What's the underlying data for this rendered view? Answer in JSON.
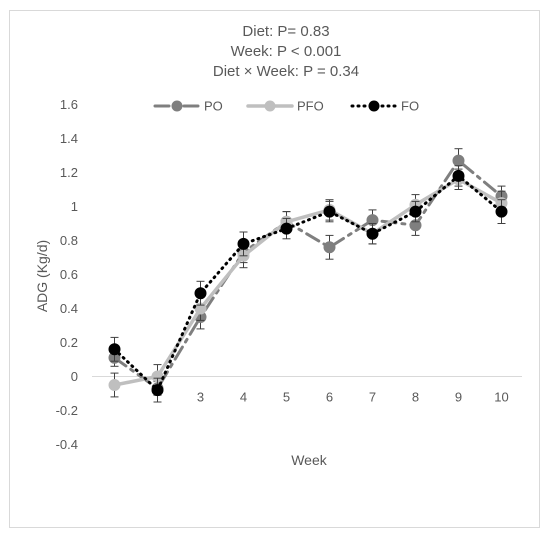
{
  "chart_data": {
    "type": "line",
    "subtitles": [
      "Diet: P= 0.83",
      "Week: P  < 0.001",
      "Diet × Week: P = 0.34"
    ],
    "xlabel": "Week",
    "ylabel": "ADG (Kg/d)",
    "x": [
      2,
      3,
      4,
      5,
      6,
      7,
      8,
      9,
      10
    ],
    "x_tick_labels": [
      "3",
      "4",
      "5",
      "6",
      "7",
      "8",
      "9",
      "10"
    ],
    "ylim": [
      -0.4,
      1.6
    ],
    "y_ticks": [
      "1.6",
      "1.4",
      "1.2",
      "1",
      "0.8",
      "0.6",
      "0.4",
      "0.2",
      "0",
      "-0.2",
      "-0.4"
    ],
    "grid": false,
    "legend_position": "top",
    "series": [
      {
        "name": "PO",
        "style": "dash-dot",
        "color": "#7f7f7f",
        "x": [
          1,
          2,
          3,
          4,
          5,
          6,
          7,
          8,
          9,
          10
        ],
        "values": [
          0.11,
          -0.07,
          0.35,
          0.73,
          0.91,
          0.76,
          0.92,
          0.89,
          1.27,
          1.06
        ],
        "errors": [
          0.05,
          0.04,
          0.07,
          0.06,
          0.06,
          0.07,
          0.06,
          0.06,
          0.07,
          0.06
        ]
      },
      {
        "name": "PFO",
        "style": "solid",
        "color": "#bfbfbf",
        "x": [
          1,
          2,
          3,
          4,
          5,
          6,
          7,
          8,
          9,
          10
        ],
        "values": [
          -0.05,
          0.0,
          0.4,
          0.71,
          0.91,
          0.98,
          0.84,
          1.01,
          1.16,
          1.02
        ],
        "errors": [
          0.07,
          0.07,
          0.07,
          0.07,
          0.06,
          0.06,
          0.06,
          0.06,
          0.06,
          0.07
        ]
      },
      {
        "name": "FO",
        "style": "dotted",
        "color": "#000000",
        "x": [
          1,
          2,
          3,
          4,
          5,
          6,
          7,
          8,
          9,
          10
        ],
        "values": [
          0.16,
          -0.08,
          0.49,
          0.78,
          0.87,
          0.97,
          0.84,
          0.97,
          1.18,
          0.97
        ],
        "errors": [
          0.07,
          0.07,
          0.07,
          0.07,
          0.06,
          0.06,
          0.06,
          0.06,
          0.06,
          0.07
        ]
      }
    ]
  }
}
